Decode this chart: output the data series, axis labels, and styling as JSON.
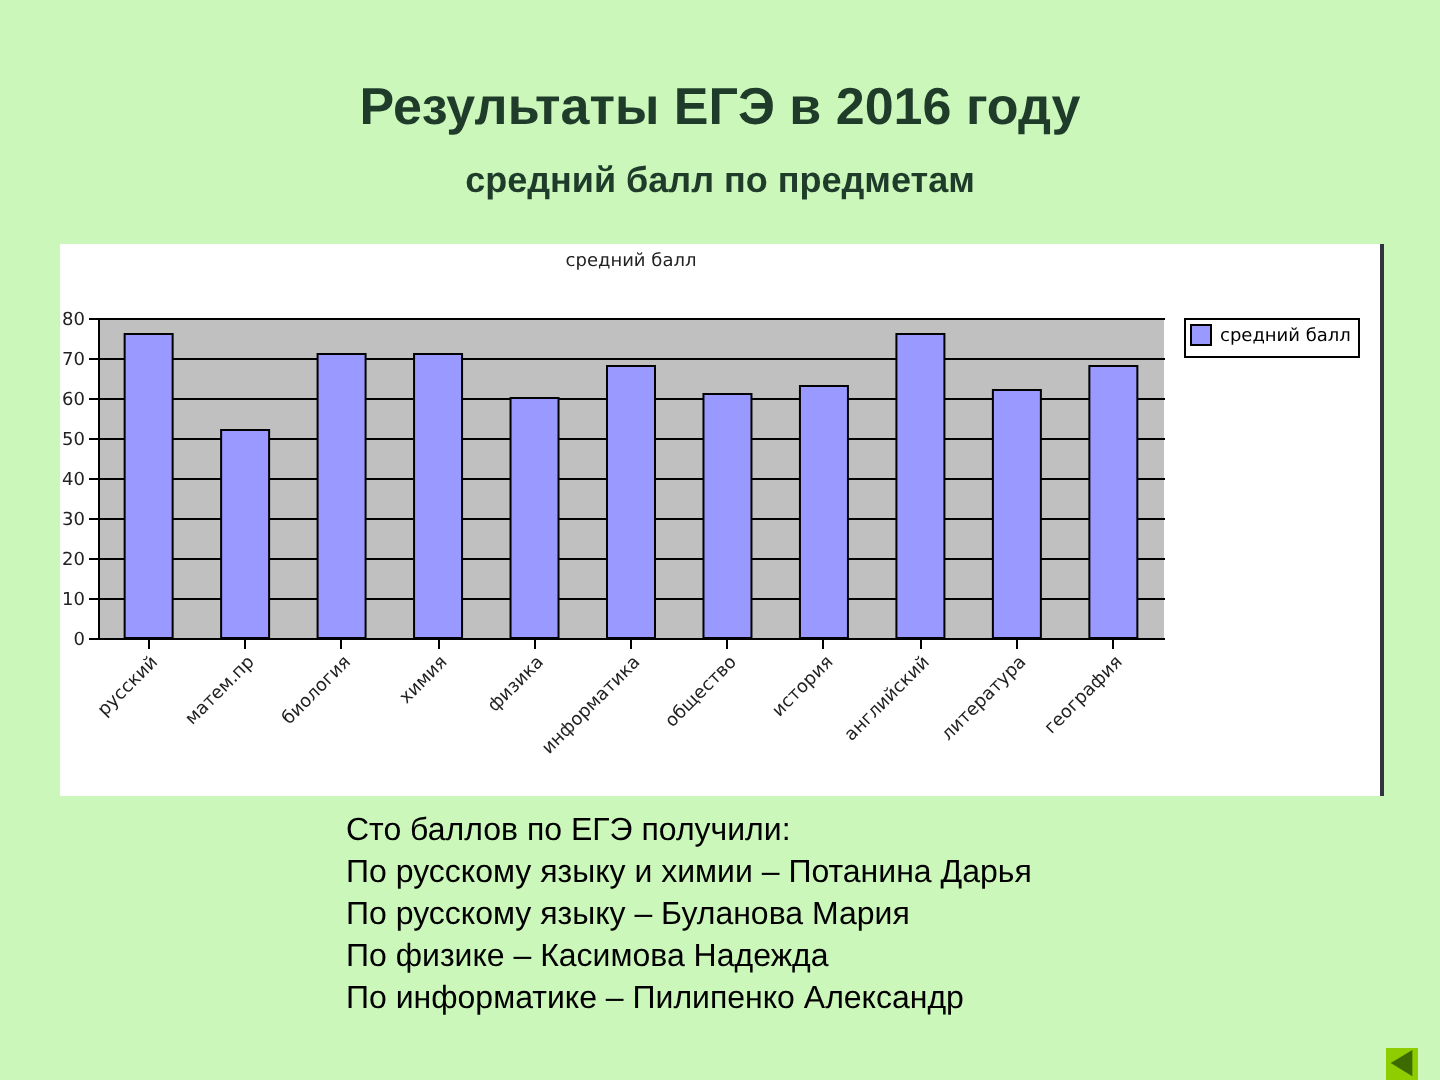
{
  "chart_data": {
    "type": "bar",
    "title": "Результаты ЕГЭ в 2016 году",
    "subtitle": "средний балл по предметам",
    "categories": [
      "русский",
      "матем.пр",
      "биология",
      "химия",
      "физика",
      "информатика",
      "общество",
      "история",
      "английский",
      "литература",
      "география"
    ],
    "series": [
      {
        "name": "средний балл",
        "color": "#9999ff",
        "values": [
          76,
          52,
          71,
          71,
          60,
          68,
          61,
          63,
          76,
          62,
          68
        ]
      }
    ],
    "ylim": [
      0,
      80
    ],
    "yticks": [
      0,
      10,
      20,
      30,
      40,
      50,
      60,
      70,
      80
    ],
    "grid": "y",
    "legend": "right",
    "annotations": [
      "средний балл",
      "Сто баллов по ЕГЭ получили:",
      "По русскому языку и химии – Потанина Дарья",
      "По русскому языку – Буланова Мария",
      "По физике – Касимова Надежда",
      "По информатике – Пилипенко Александр"
    ]
  }
}
